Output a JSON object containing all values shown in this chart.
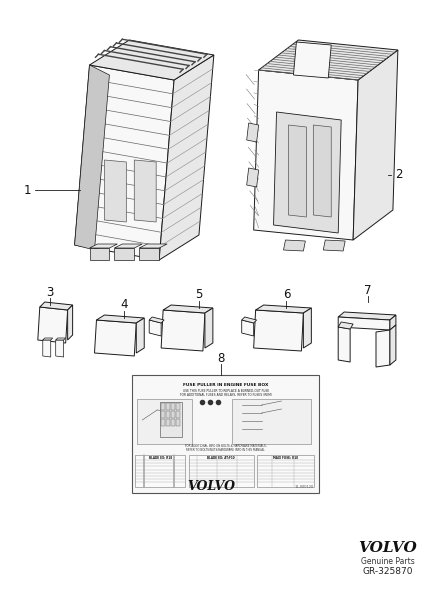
{
  "background_color": "#ffffff",
  "fig_width": 4.25,
  "fig_height": 6.01,
  "dpi": 100,
  "volvo_text": "VOLVO",
  "genuine_parts_text": "Genuine Parts",
  "part_number_text": "GR-325870",
  "line_color": "#1a1a1a",
  "fill_light": "#f8f8f8",
  "fill_mid": "#e8e8e8",
  "fill_dark": "#d0d0d0"
}
